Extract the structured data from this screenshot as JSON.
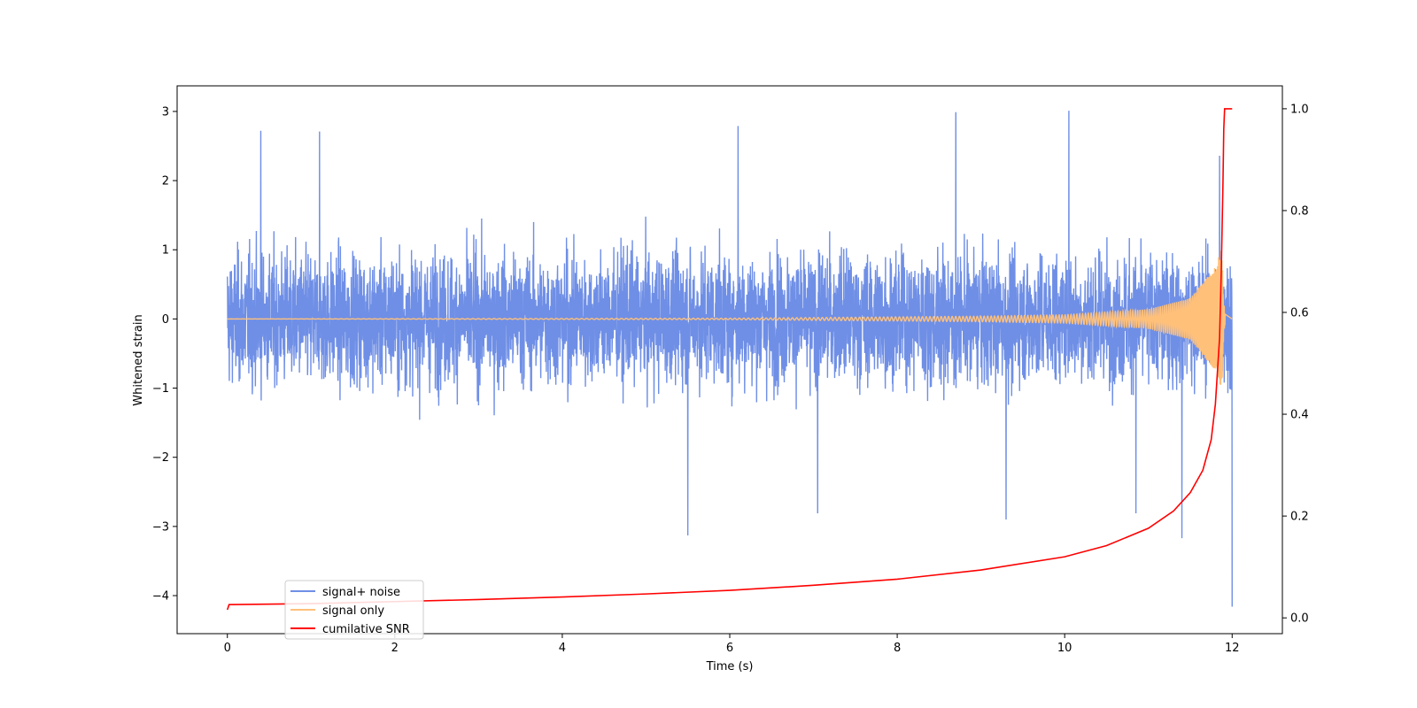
{
  "chart_data": {
    "type": "line",
    "title": "",
    "xlabel": "Time (s)",
    "ylabel": "Whitened strain",
    "y2label": "",
    "xlim": [
      -0.6,
      12.6
    ],
    "ylim": [
      -4.55,
      3.37
    ],
    "y2lim": [
      -0.031,
      1.045
    ],
    "xticks": [
      0,
      2,
      4,
      6,
      8,
      10,
      12
    ],
    "xtick_labels": [
      "0",
      "2",
      "4",
      "6",
      "8",
      "10",
      "12"
    ],
    "yticks": [
      3,
      2,
      1,
      0,
      -1,
      -2,
      -3,
      -4
    ],
    "ytick_labels": [
      "3",
      "2",
      "1",
      "0",
      "−1",
      "−2",
      "−3",
      "−4"
    ],
    "y2ticks": [
      1.0,
      0.8,
      0.6,
      0.4,
      0.2,
      0.0
    ],
    "y2tick_labels": [
      "1.0",
      "0.8",
      "0.6",
      "0.4",
      "0.2",
      "0.0"
    ],
    "grid": false,
    "legend_position": "lower-left",
    "series": [
      {
        "name": "signal+ noise",
        "axis": "left",
        "color": "#6f8fe6",
        "description_values": {
          "t_start": 0,
          "t_end": 12,
          "typical_envelope": [
            -1.5,
            1.5
          ],
          "notable_peaks": [
            {
              "x": 0.4,
              "y": 2.72
            },
            {
              "x": 1.1,
              "y": 2.71
            },
            {
              "x": 6.1,
              "y": 2.79
            },
            {
              "x": 8.7,
              "y": 2.99
            },
            {
              "x": 10.05,
              "y": 3.01
            },
            {
              "x": 11.85,
              "y": 2.36
            }
          ],
          "notable_troughs": [
            {
              "x": 5.5,
              "y": -3.13
            },
            {
              "x": 7.05,
              "y": -2.81
            },
            {
              "x": 9.3,
              "y": -2.9
            },
            {
              "x": 10.85,
              "y": -2.81
            },
            {
              "x": 11.4,
              "y": -3.17
            },
            {
              "x": 12.0,
              "y": -4.16
            }
          ]
        }
      },
      {
        "name": "signal only",
        "axis": "left",
        "color": "#ffc07a",
        "description_values": {
          "t_start": 0,
          "t_end": 12,
          "amplitude_points": [
            {
              "x": 0,
              "y": 0.0
            },
            {
              "x": 6,
              "y": 0.01
            },
            {
              "x": 9,
              "y": 0.04
            },
            {
              "x": 10,
              "y": 0.06
            },
            {
              "x": 11,
              "y": 0.14
            },
            {
              "x": 11.5,
              "y": 0.3
            },
            {
              "x": 11.8,
              "y": 0.75
            },
            {
              "x": 11.88,
              "y": 1.05
            },
            {
              "x": 11.9,
              "y": 0.2
            },
            {
              "x": 12,
              "y": 0.0
            }
          ]
        }
      },
      {
        "name": "cumilative SNR",
        "axis": "right",
        "color": "#ff0000",
        "points": [
          {
            "x": 0.0,
            "y": 0.016
          },
          {
            "x": 0.02,
            "y": 0.026
          },
          {
            "x": 1,
            "y": 0.028
          },
          {
            "x": 2,
            "y": 0.032
          },
          {
            "x": 3,
            "y": 0.036
          },
          {
            "x": 4,
            "y": 0.041
          },
          {
            "x": 5,
            "y": 0.047
          },
          {
            "x": 6,
            "y": 0.054
          },
          {
            "x": 7,
            "y": 0.064
          },
          {
            "x": 8,
            "y": 0.076
          },
          {
            "x": 9,
            "y": 0.094
          },
          {
            "x": 10,
            "y": 0.12
          },
          {
            "x": 10.5,
            "y": 0.142
          },
          {
            "x": 11,
            "y": 0.176
          },
          {
            "x": 11.3,
            "y": 0.21
          },
          {
            "x": 11.5,
            "y": 0.246
          },
          {
            "x": 11.65,
            "y": 0.29
          },
          {
            "x": 11.75,
            "y": 0.35
          },
          {
            "x": 11.8,
            "y": 0.42
          },
          {
            "x": 11.85,
            "y": 0.55
          },
          {
            "x": 11.87,
            "y": 0.68
          },
          {
            "x": 11.89,
            "y": 0.85
          },
          {
            "x": 11.9,
            "y": 0.96
          },
          {
            "x": 11.91,
            "y": 1.0
          },
          {
            "x": 12.0,
            "y": 1.0
          }
        ]
      }
    ]
  }
}
